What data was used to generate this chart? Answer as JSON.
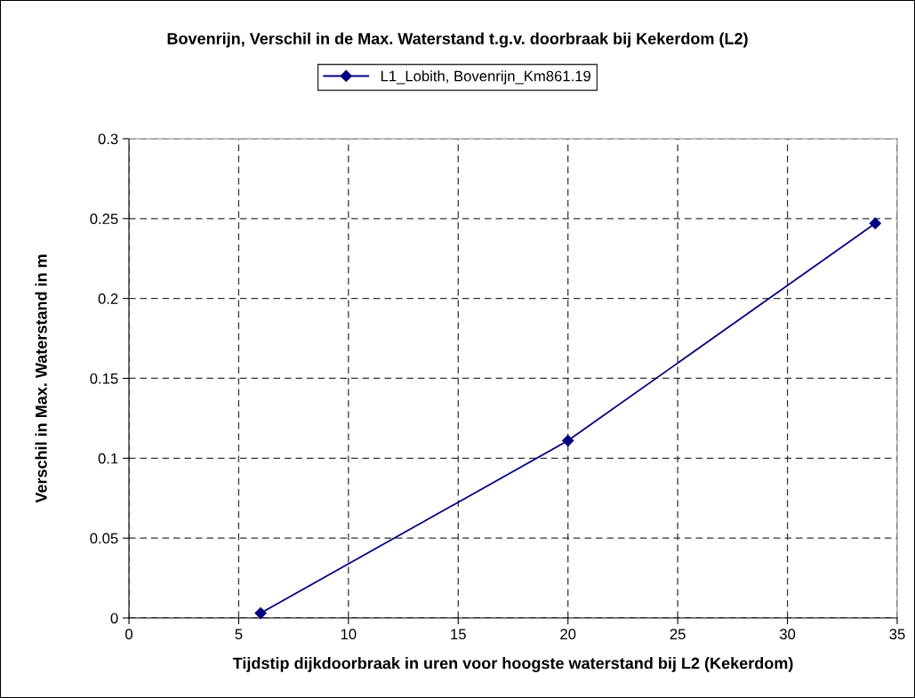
{
  "chart_data": {
    "type": "line",
    "title": "Bovenrijn, Verschil in de Max. Waterstand t.g.v. doorbraak bij Kekerdom (L2)",
    "xlabel": "Tijdstip dijkdoorbraak in uren voor hoogste waterstand bij L2 (Kekerdom)",
    "ylabel": "Verschil in Max. Waterstand in m",
    "x": [
      6,
      20,
      34
    ],
    "series": [
      {
        "name": "L1_Lobith, Bovenrijn_Km861.19",
        "color": "#000080",
        "values": [
          0.003,
          0.111,
          0.247
        ]
      }
    ],
    "xlim": [
      0,
      35
    ],
    "xticks": [
      0,
      5,
      10,
      15,
      20,
      25,
      30,
      35
    ],
    "ylim": [
      0,
      0.3
    ],
    "yticks": [
      0,
      0.05,
      0.1,
      0.15,
      0.2,
      0.25,
      0.3
    ],
    "grid": true,
    "legend": "top",
    "marker": "diamond",
    "line_style": "solid"
  }
}
